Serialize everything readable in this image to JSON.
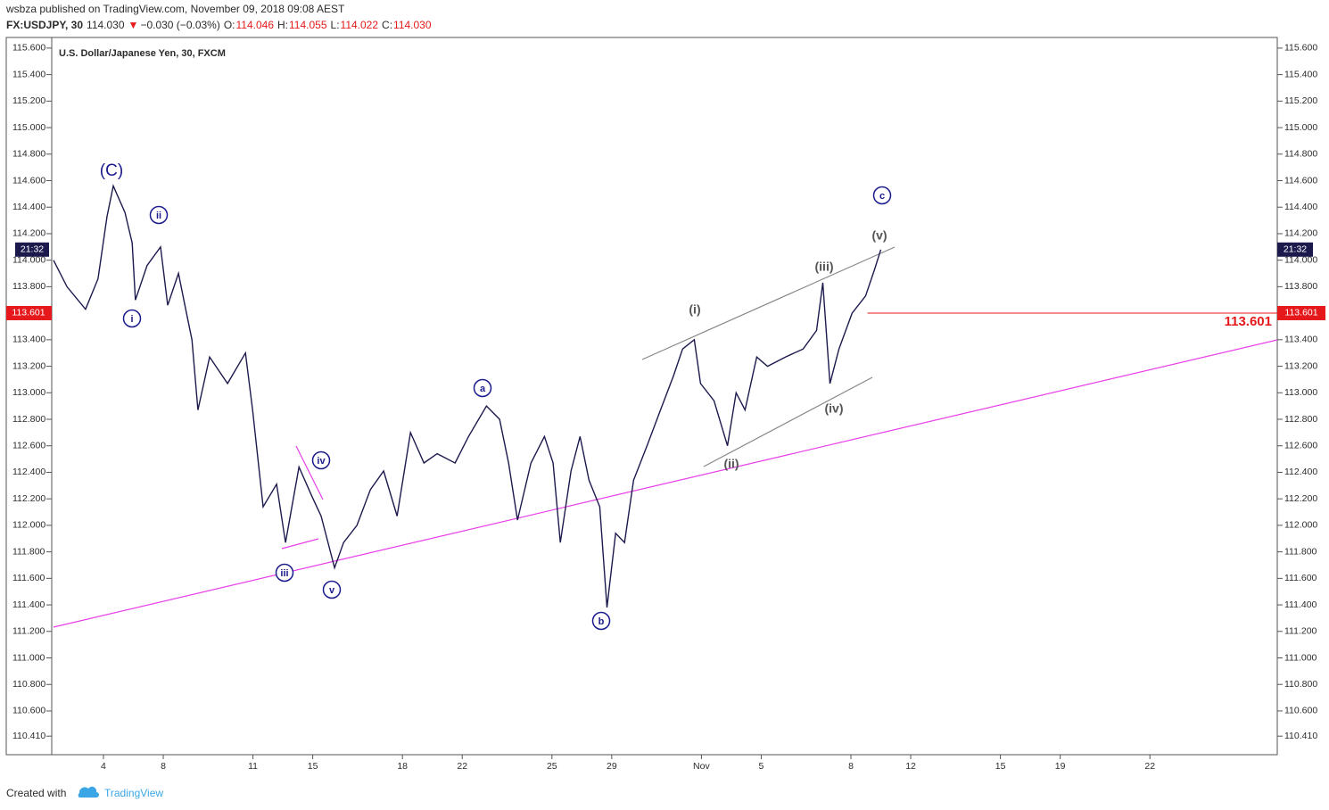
{
  "header": {
    "published": "wsbza published on TradingView.com, November 09, 2018 09:08 AEST",
    "symbol": "FX:USDJPY, 30",
    "last": "114.030",
    "arrow": "▼",
    "change": "−0.030 (−0.03%)",
    "ohlc": [
      {
        "label": "O:",
        "value": "114.046"
      },
      {
        "label": "H:",
        "value": "114.055"
      },
      {
        "label": "L:",
        "value": "114.022"
      },
      {
        "label": "C:",
        "value": "114.030"
      }
    ]
  },
  "footer": {
    "created": "Created with",
    "brand": "TradingView"
  },
  "chart_data": {
    "type": "line",
    "title": "U.S. Dollar/Japanese Yen, 30, FXCM",
    "color": "#1c1a4d",
    "x": [
      -1.67,
      -1.22,
      -0.6,
      -0.18,
      0.12,
      0.33,
      0.72,
      0.96,
      1.07,
      1.46,
      1.91,
      2.15,
      2.51,
      2.75,
      2.96,
      3.16,
      3.55,
      4.15,
      4.75,
      4.99,
      5.34,
      5.79,
      6.09,
      6.54,
      6.99,
      7.28,
      7.73,
      8.03,
      8.48,
      8.93,
      9.37,
      9.82,
      10.27,
      10.72,
      11.16,
      11.76,
      12.21,
      12.81,
      13.25,
      13.55,
      13.85,
      14.3,
      14.75,
      15.04,
      15.28,
      15.64,
      15.94,
      16.24,
      16.6,
      16.84,
      17.13,
      17.43,
      17.73,
      18.18,
      18.63,
      19.07,
      19.37,
      19.76,
      19.97,
      20.42,
      20.87,
      21.16,
      21.46,
      21.85,
      22.21,
      22.81,
      23.4,
      23.85,
      24.06,
      24.3,
      24.6,
      25.04,
      25.49,
      25.79,
      26.0
    ],
    "values": [
      114.0,
      113.8,
      113.63,
      113.86,
      114.33,
      114.56,
      114.36,
      114.13,
      113.7,
      113.96,
      114.1,
      113.66,
      113.9,
      113.63,
      113.4,
      112.87,
      113.27,
      113.07,
      113.3,
      112.87,
      112.14,
      112.31,
      111.87,
      112.44,
      112.21,
      112.07,
      111.68,
      111.87,
      112.0,
      112.27,
      112.41,
      112.07,
      112.7,
      112.47,
      112.54,
      112.47,
      112.67,
      112.9,
      112.8,
      112.47,
      112.04,
      112.47,
      112.67,
      112.47,
      111.87,
      112.41,
      112.67,
      112.34,
      112.14,
      111.38,
      111.94,
      111.87,
      112.34,
      112.6,
      112.87,
      113.13,
      113.33,
      113.4,
      113.07,
      112.94,
      112.6,
      113.0,
      112.87,
      113.27,
      113.2,
      113.27,
      113.33,
      113.47,
      113.83,
      113.07,
      113.33,
      113.6,
      113.73,
      113.93,
      114.08
    ],
    "xlim": [
      -1.67,
      39.2
    ],
    "xticks": [
      {
        "value": 0,
        "label": "4"
      },
      {
        "value": 2,
        "label": "8"
      },
      {
        "value": 5,
        "label": "11"
      },
      {
        "value": 7,
        "label": "15"
      },
      {
        "value": 10,
        "label": "18"
      },
      {
        "value": 12,
        "label": "22"
      },
      {
        "value": 15,
        "label": "25"
      },
      {
        "value": 17,
        "label": "29"
      },
      {
        "value": 20,
        "label": "Nov"
      },
      {
        "value": 22,
        "label": "5"
      },
      {
        "value": 25,
        "label": "8"
      },
      {
        "value": 27,
        "label": "12"
      },
      {
        "value": 30,
        "label": "15"
      },
      {
        "value": 32,
        "label": "19"
      },
      {
        "value": 35,
        "label": "22"
      }
    ],
    "ylim": [
      110.27,
      115.68
    ],
    "yticks": [
      {
        "value": 110.41,
        "label": "110.410"
      },
      {
        "value": 110.6,
        "label": "110.600"
      },
      {
        "value": 110.8,
        "label": "110.800"
      },
      {
        "value": 111.0,
        "label": "111.000"
      },
      {
        "value": 111.2,
        "label": "111.200"
      },
      {
        "value": 111.4,
        "label": "111.400"
      },
      {
        "value": 111.6,
        "label": "111.600"
      },
      {
        "value": 111.8,
        "label": "111.800"
      },
      {
        "value": 112.0,
        "label": "112.000"
      },
      {
        "value": 112.2,
        "label": "112.200"
      },
      {
        "value": 112.4,
        "label": "112.400"
      },
      {
        "value": 112.6,
        "label": "112.600"
      },
      {
        "value": 112.8,
        "label": "112.800"
      },
      {
        "value": 113.0,
        "label": "113.000"
      },
      {
        "value": 113.2,
        "label": "113.200"
      },
      {
        "value": 113.4,
        "label": "113.400"
      },
      {
        "value": 113.6,
        "label": "113.600"
      },
      {
        "value": 113.8,
        "label": "113.800"
      },
      {
        "value": 114.0,
        "label": "114.000"
      },
      {
        "value": 114.2,
        "label": "114.200"
      },
      {
        "value": 114.4,
        "label": "114.400"
      },
      {
        "value": 114.6,
        "label": "114.600"
      },
      {
        "value": 114.8,
        "label": "114.800"
      },
      {
        "value": 115.0,
        "label": "115.000"
      },
      {
        "value": 115.2,
        "label": "115.200"
      },
      {
        "value": 115.4,
        "label": "115.400"
      },
      {
        "value": 115.6,
        "label": "115.600"
      }
    ],
    "price_line": {
      "value": 113.601,
      "label": "113.601",
      "color": "#e5191b"
    },
    "countdown": "21:32",
    "annotations": [
      "(C)",
      "ii",
      "i",
      "iv",
      "iii",
      "v",
      "a",
      "b",
      "(i)",
      "(ii)",
      "(iii)",
      "(iv)",
      "(v)",
      "c"
    ]
  }
}
